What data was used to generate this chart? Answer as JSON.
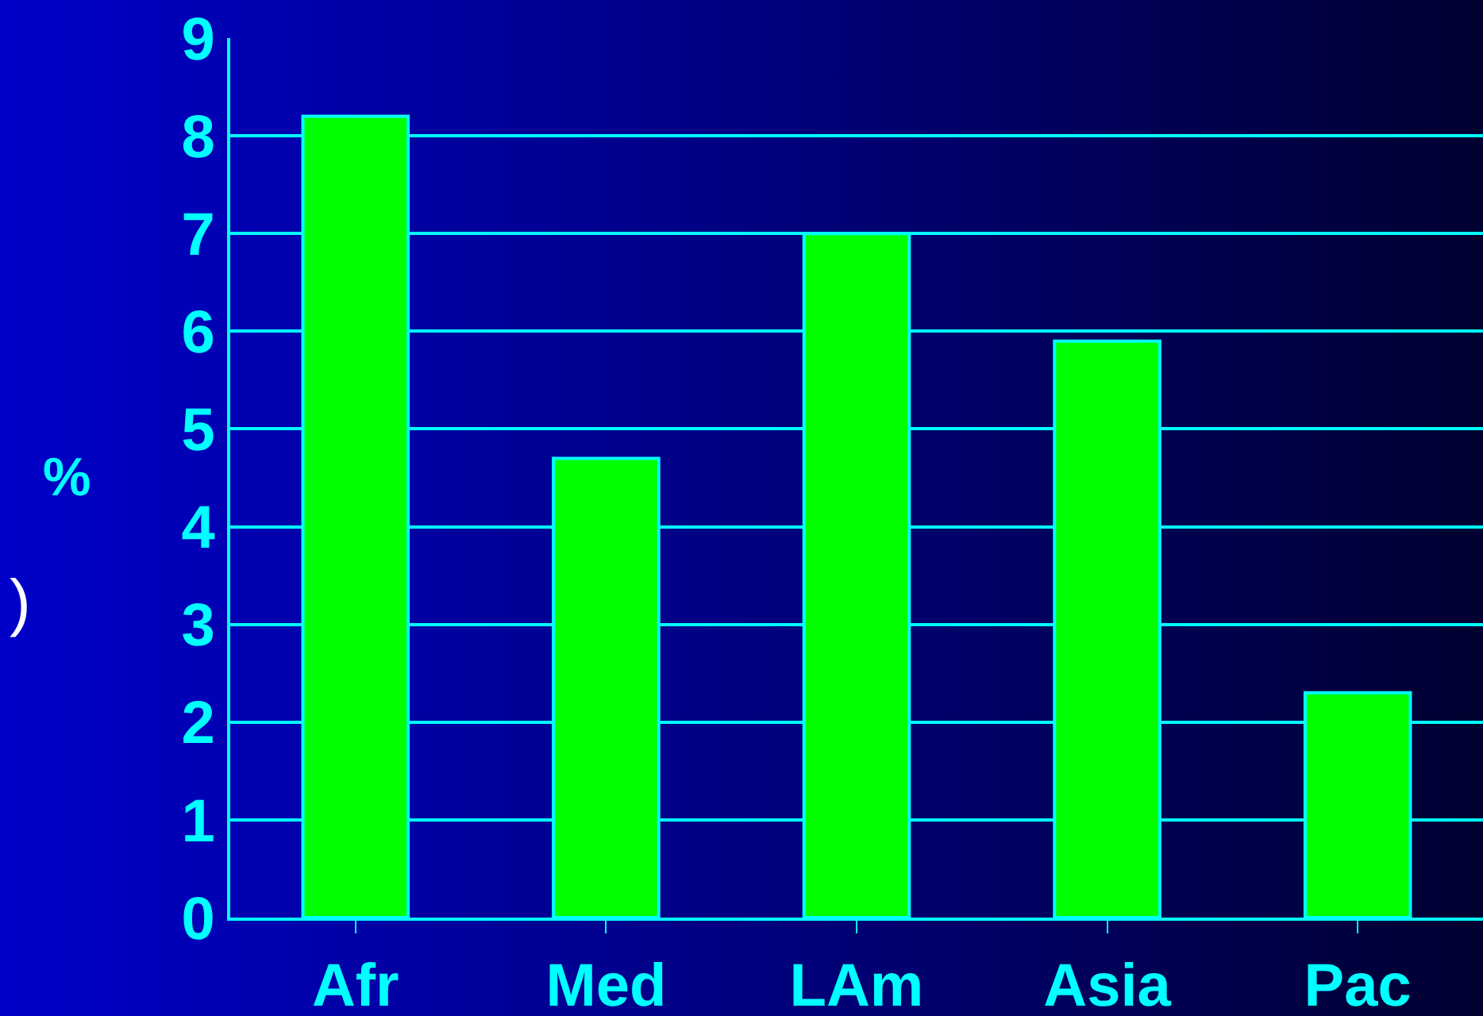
{
  "chart_data": {
    "type": "bar",
    "ylabel": "%",
    "categories": [
      "Afr",
      "Med",
      "LAm",
      "Asia",
      "Pac"
    ],
    "values": [
      8.2,
      4.7,
      7.0,
      5.9,
      2.3
    ],
    "color": "#00ff00",
    "ylim": [
      0,
      9
    ],
    "yticks": [
      0,
      1,
      2,
      3,
      4,
      5,
      6,
      7,
      8,
      9
    ],
    "grid": "y",
    "annotations": [
      ")"
    ]
  }
}
